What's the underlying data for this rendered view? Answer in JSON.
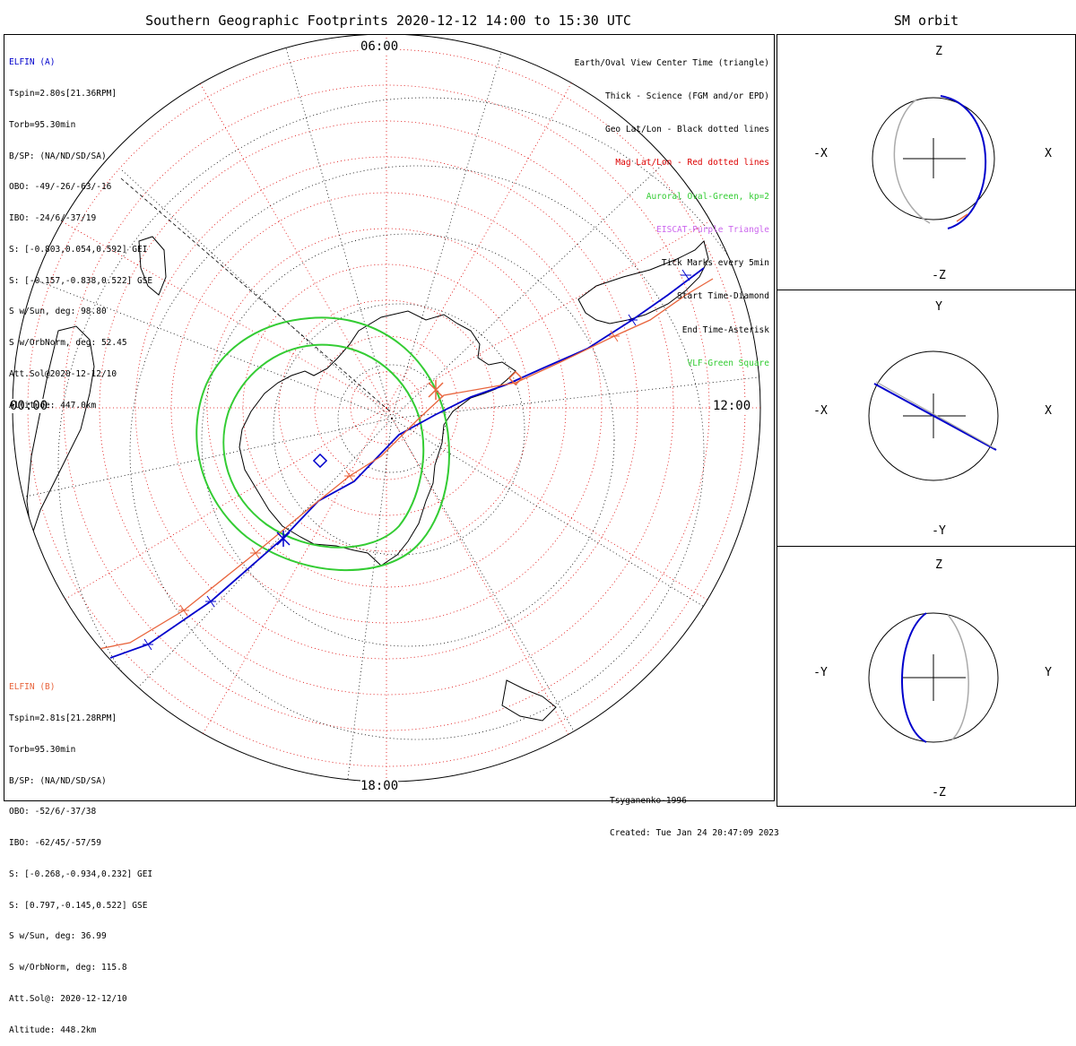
{
  "title": "Southern Geographic Footprints 2020-12-12 14:00 to 15:30 UTC",
  "side_title": "SM orbit",
  "time_labels": {
    "top": "06:00",
    "left": "00:00",
    "right": "12:00",
    "bottom": "18:00"
  },
  "elfin_a": {
    "name": "ELFIN (A)",
    "color": "#0000cc",
    "lines": [
      "Tspin=2.80s[21.36RPM]",
      "Torb=95.30min",
      "B/SP: (NA/ND/SD/SA)",
      "OBO: -49/-26/-63/-16",
      "IBO: -24/6/-37/19",
      "S: [-0.803,0.054,0.592] GEI",
      "S: [-0.157,-0.838,0.522] GSE",
      "S w/Sun, deg: 98.80",
      "S w/OrbNorm, deg: 52.45",
      "Att.Sol@2020-12-12/10",
      "Altitude: 447.0km"
    ]
  },
  "elfin_b": {
    "name": "ELFIN (B)",
    "color": "#e8643c",
    "lines": [
      "Tspin=2.81s[21.28RPM]",
      "Torb=95.30min",
      "B/SP: (NA/ND/SD/SA)",
      "OBO: -52/6/-37/38",
      "IBO: -62/45/-57/59",
      "S: [-0.268,-0.934,0.232] GEI",
      "S: [0.797,-0.145,0.522] GSE",
      "S w/Sun, deg: 36.99",
      "S w/OrbNorm, deg: 115.8",
      "Att.Sol@: 2020-12-12/10",
      "Altitude: 448.2km"
    ]
  },
  "legend": [
    {
      "text": "Earth/Oval View Center Time (triangle)",
      "color": "#000000"
    },
    {
      "text": "Thick - Science (FGM and/or EPD)",
      "color": "#000000"
    },
    {
      "text": "Geo Lat/Lon - Black dotted lines",
      "color": "#000000"
    },
    {
      "text": "Mag Lat/Lon - Red dotted lines",
      "color": "#dd0000"
    },
    {
      "text": "Auroral Oval-Green, kp=2",
      "color": "#33cc33"
    },
    {
      "text": "EISCAT-Purple Triangle",
      "color": "#cc66ee"
    },
    {
      "text": "Tick Marks every 5min",
      "color": "#000000"
    },
    {
      "text": "Start Time-Diamond",
      "color": "#000000"
    },
    {
      "text": "End Time-Asterisk",
      "color": "#000000"
    },
    {
      "text": "VLF-Green Square",
      "color": "#33cc33"
    }
  ],
  "footer": [
    "Tsyganenko-1996",
    "Created: Tue Jan 24 20:47:09 2023"
  ],
  "orbit_panels": [
    {
      "top": "Z",
      "bottom": "-Z",
      "left": "-X",
      "right": "X"
    },
    {
      "top": "Y",
      "bottom": "-Y",
      "left": "-X",
      "right": "X"
    },
    {
      "top": "Z",
      "bottom": "-Z",
      "left": "-Y",
      "right": "Y"
    }
  ],
  "colors": {
    "elfin_a": "#0000cc",
    "elfin_b": "#e8643c",
    "oval": "#33cc33",
    "mag_grid": "#dd0000",
    "geo_grid": "#000000"
  }
}
